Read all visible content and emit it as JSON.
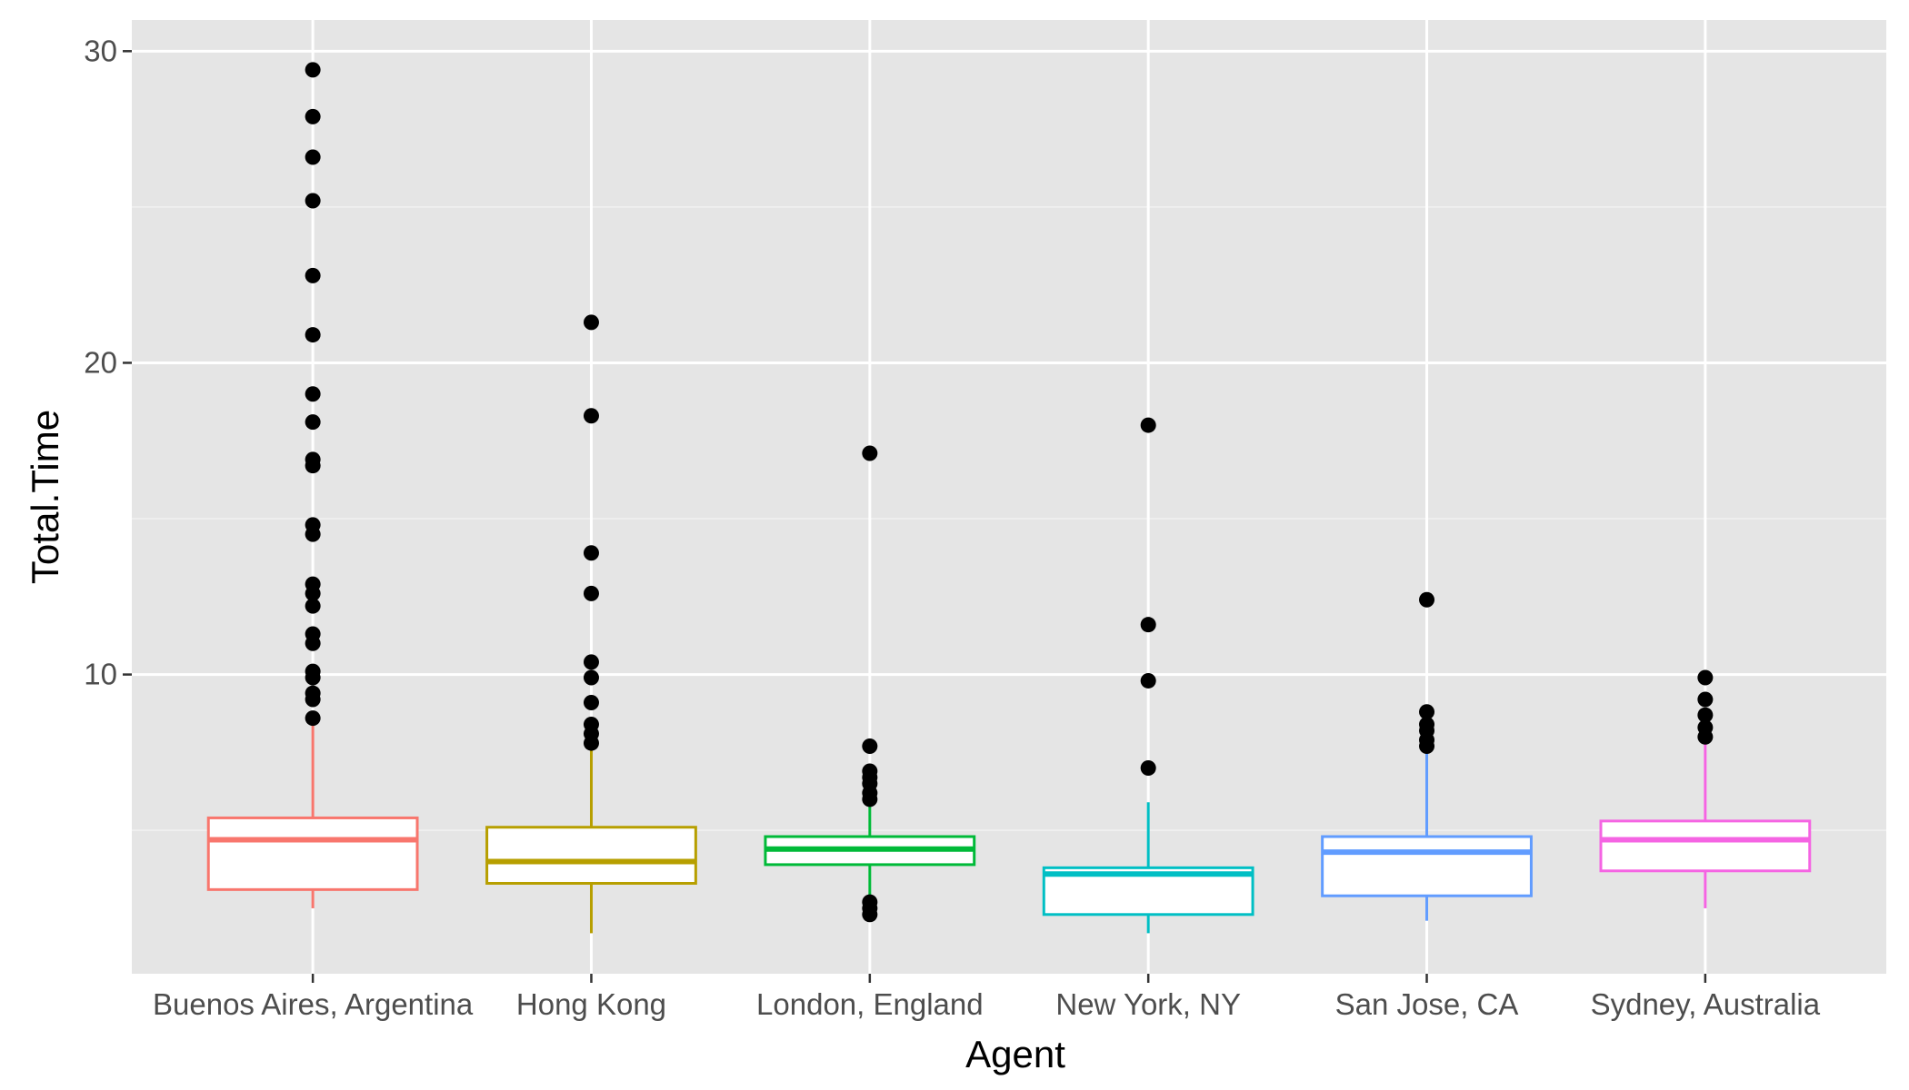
{
  "chart_data": {
    "type": "boxplot",
    "xlabel": "Agent",
    "ylabel": "Total.Time",
    "ylim": [
      0.4,
      31
    ],
    "y_ticks": [
      10,
      20,
      30
    ],
    "y_minor_ticks": [
      5,
      15,
      25
    ],
    "grid": true,
    "legend": "none",
    "categories": [
      "Buenos Aires, Argentina",
      "Hong Kong",
      "London, England",
      "New York, NY",
      "San Jose, CA",
      "Sydney, Australia"
    ],
    "series": [
      {
        "category": "Buenos Aires, Argentina",
        "color": "#F8766D",
        "whisker_low": 2.5,
        "q1": 3.1,
        "median": 4.7,
        "q3": 5.4,
        "whisker_high": 8.4,
        "outliers": [
          29.4,
          27.9,
          26.6,
          25.2,
          22.8,
          20.9,
          19.0,
          18.1,
          16.9,
          16.7,
          14.8,
          14.5,
          12.9,
          12.6,
          12.2,
          11.3,
          11.0,
          10.1,
          9.9,
          9.4,
          9.2,
          8.6
        ]
      },
      {
        "category": "Hong Kong",
        "color": "#B79F00",
        "whisker_low": 1.7,
        "q1": 3.3,
        "median": 4.0,
        "q3": 5.1,
        "whisker_high": 7.6,
        "outliers": [
          21.3,
          18.3,
          13.9,
          12.6,
          10.4,
          9.9,
          9.1,
          8.4,
          8.1,
          7.8
        ]
      },
      {
        "category": "London, England",
        "color": "#00BA38",
        "whisker_low": 2.6,
        "q1": 3.9,
        "median": 4.4,
        "q3": 4.8,
        "whisker_high": 6.0,
        "outliers": [
          17.1,
          7.7,
          6.9,
          6.7,
          6.5,
          6.2,
          6.0,
          2.7,
          2.5,
          2.3
        ]
      },
      {
        "category": "New York, NY",
        "color": "#00BFC4",
        "whisker_low": 1.7,
        "q1": 2.3,
        "median": 3.6,
        "q3": 3.8,
        "whisker_high": 5.9,
        "outliers": [
          18.0,
          11.6,
          9.8,
          7.0
        ]
      },
      {
        "category": "San Jose, CA",
        "color": "#619CFF",
        "whisker_low": 2.1,
        "q1": 2.9,
        "median": 4.3,
        "q3": 4.8,
        "whisker_high": 7.6,
        "outliers": [
          12.4,
          8.8,
          8.4,
          8.2,
          7.9,
          7.7
        ]
      },
      {
        "category": "Sydney, Australia",
        "color": "#F564E3",
        "whisker_low": 2.5,
        "q1": 3.7,
        "median": 4.7,
        "q3": 5.3,
        "whisker_high": 7.8,
        "outliers": [
          9.9,
          9.2,
          8.7,
          8.3,
          8.0
        ]
      }
    ]
  }
}
